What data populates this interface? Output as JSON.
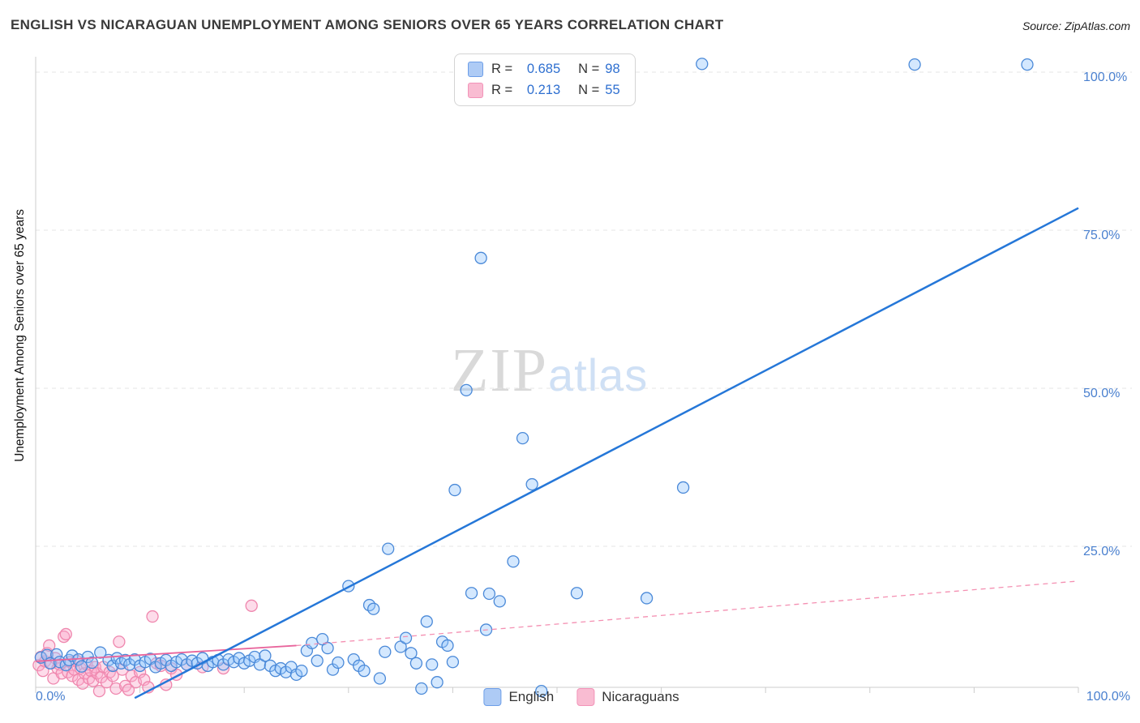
{
  "header": {
    "title": "ENGLISH VS NICARAGUAN UNEMPLOYMENT AMONG SENIORS OVER 65 YEARS CORRELATION CHART",
    "source": "Source: ZipAtlas.com"
  },
  "watermark": {
    "zip": "ZIP",
    "atlas": "atlas"
  },
  "legend_box": {
    "rows": [
      {
        "series": "English",
        "r_label": "R =",
        "r_value": "0.685",
        "n_label": "N =",
        "n_value": "98",
        "swatch_fill": "#aecbf5",
        "swatch_border": "#6d9ee8"
      },
      {
        "series": "Nicaraguans",
        "r_label": "R =",
        "r_value": "0.213",
        "n_label": "N =",
        "n_value": "55",
        "swatch_fill": "#f9bcd2",
        "swatch_border": "#f293b8"
      }
    ]
  },
  "bottom_legend": {
    "items": [
      {
        "label": "English",
        "swatch_fill": "#aecbf5",
        "swatch_border": "#6d9ee8"
      },
      {
        "label": "Nicaraguans",
        "swatch_fill": "#f9bcd2",
        "swatch_border": "#f293b8"
      }
    ]
  },
  "axes": {
    "y_label": "Unemployment Among Seniors over 65 years",
    "tick_color": "#4a80cf",
    "y_ticks": [
      {
        "label": "100.0%",
        "value": 100
      },
      {
        "label": "75.0%",
        "value": 75
      },
      {
        "label": "50.0%",
        "value": 50
      },
      {
        "label": "25.0%",
        "value": 25
      }
    ],
    "x_ticks": [
      {
        "label": "0.0%",
        "value": 0
      },
      {
        "label": "100.0%",
        "value": 100
      }
    ]
  },
  "chart_data": {
    "type": "scatter",
    "title": "ENGLISH VS NICARAGUAN UNEMPLOYMENT AMONG SENIORS OVER 65 YEARS CORRELATION CHART",
    "xlabel": "",
    "ylabel": "Unemployment Among Seniors over 65 years",
    "xlim": [
      0,
      100
    ],
    "ylim": [
      0,
      103
    ],
    "grid": "horizontal-dashed",
    "legend_position": "top-center",
    "series": [
      {
        "name": "English",
        "R": 0.685,
        "N": 98,
        "fill": "#93c5fd",
        "fill_opacity": 0.4,
        "stroke": "#4a89d8",
        "points": [
          [
            0.5,
            7.4
          ],
          [
            1.1,
            7.8
          ],
          [
            1.4,
            6.5
          ],
          [
            2.0,
            7.9
          ],
          [
            2.3,
            6.7
          ],
          [
            2.9,
            6.2
          ],
          [
            3.2,
            7.0
          ],
          [
            3.5,
            7.7
          ],
          [
            4.1,
            7.1
          ],
          [
            4.4,
            6.0
          ],
          [
            5.0,
            7.5
          ],
          [
            5.4,
            6.6
          ],
          [
            6.2,
            8.2
          ],
          [
            7.0,
            7.0
          ],
          [
            7.4,
            6.1
          ],
          [
            7.8,
            7.3
          ],
          [
            8.2,
            6.5
          ],
          [
            8.6,
            7.0
          ],
          [
            9.0,
            6.3
          ],
          [
            9.5,
            7.1
          ],
          [
            10.0,
            6.1
          ],
          [
            10.5,
            6.7
          ],
          [
            11.0,
            7.2
          ],
          [
            11.5,
            5.9
          ],
          [
            12.0,
            6.5
          ],
          [
            12.5,
            7.0
          ],
          [
            13.0,
            6.1
          ],
          [
            13.5,
            6.7
          ],
          [
            14.0,
            7.1
          ],
          [
            14.5,
            6.3
          ],
          [
            15.0,
            6.9
          ],
          [
            15.5,
            6.5
          ],
          [
            16.0,
            7.3
          ],
          [
            16.5,
            6.1
          ],
          [
            17.0,
            6.7
          ],
          [
            17.5,
            7.0
          ],
          [
            18.0,
            6.3
          ],
          [
            18.5,
            7.1
          ],
          [
            19.0,
            6.7
          ],
          [
            19.5,
            7.3
          ],
          [
            20.0,
            6.5
          ],
          [
            20.5,
            6.9
          ],
          [
            21.0,
            7.5
          ],
          [
            21.5,
            6.3
          ],
          [
            22.0,
            7.7
          ],
          [
            22.5,
            6.1
          ],
          [
            23.0,
            5.3
          ],
          [
            23.5,
            5.7
          ],
          [
            24.0,
            5.1
          ],
          [
            24.5,
            5.9
          ],
          [
            25.0,
            4.7
          ],
          [
            25.5,
            5.3
          ],
          [
            26.0,
            8.5
          ],
          [
            26.5,
            9.7
          ],
          [
            27.0,
            6.9
          ],
          [
            27.5,
            10.3
          ],
          [
            28.0,
            8.9
          ],
          [
            28.5,
            5.5
          ],
          [
            29.0,
            6.6
          ],
          [
            30.0,
            18.7
          ],
          [
            30.5,
            7.1
          ],
          [
            31.0,
            6.1
          ],
          [
            31.5,
            5.3
          ],
          [
            32.0,
            15.7
          ],
          [
            32.4,
            15.1
          ],
          [
            33.0,
            4.1
          ],
          [
            33.5,
            8.3
          ],
          [
            33.8,
            24.6
          ],
          [
            35.0,
            9.1
          ],
          [
            35.5,
            10.5
          ],
          [
            36.0,
            8.1
          ],
          [
            36.5,
            6.5
          ],
          [
            37.0,
            2.5
          ],
          [
            37.5,
            13.1
          ],
          [
            38.0,
            6.3
          ],
          [
            38.5,
            3.5
          ],
          [
            39.0,
            9.9
          ],
          [
            39.5,
            9.3
          ],
          [
            40.0,
            6.7
          ],
          [
            40.2,
            33.9
          ],
          [
            41.3,
            49.7
          ],
          [
            41.8,
            17.6
          ],
          [
            42.7,
            70.6
          ],
          [
            43.2,
            11.8
          ],
          [
            43.5,
            17.5
          ],
          [
            44.5,
            16.3
          ],
          [
            45.8,
            22.6
          ],
          [
            46.7,
            42.1
          ],
          [
            47.6,
            34.8
          ],
          [
            48.5,
            2.1
          ],
          [
            51.9,
            17.6
          ],
          [
            58.6,
            16.8
          ],
          [
            62.1,
            34.3
          ],
          [
            49.5,
            101.3
          ],
          [
            53.3,
            101.3
          ],
          [
            63.9,
            101.3
          ],
          [
            84.3,
            101.2
          ],
          [
            95.1,
            101.2
          ]
        ]
      },
      {
        "name": "Nicaraguans",
        "R": 0.213,
        "N": 55,
        "fill": "#f9a8ca",
        "fill_opacity": 0.4,
        "stroke": "#ef87ae",
        "points": [
          [
            0.3,
            6.2
          ],
          [
            0.5,
            7.5
          ],
          [
            0.7,
            5.3
          ],
          [
            0.9,
            6.8
          ],
          [
            1.1,
            8.1
          ],
          [
            1.3,
            9.3
          ],
          [
            1.5,
            6.5
          ],
          [
            1.7,
            4.1
          ],
          [
            1.9,
            7.3
          ],
          [
            2.1,
            5.7
          ],
          [
            2.3,
            6.3
          ],
          [
            2.5,
            4.9
          ],
          [
            2.7,
            10.7
          ],
          [
            2.9,
            11.1
          ],
          [
            3.1,
            5.1
          ],
          [
            3.3,
            6.7
          ],
          [
            3.5,
            4.5
          ],
          [
            3.7,
            5.5
          ],
          [
            3.9,
            6.9
          ],
          [
            4.1,
            3.9
          ],
          [
            4.3,
            5.7
          ],
          [
            4.5,
            3.3
          ],
          [
            4.7,
            4.9
          ],
          [
            4.9,
            6.3
          ],
          [
            5.1,
            4.1
          ],
          [
            5.3,
            5.3
          ],
          [
            5.5,
            3.7
          ],
          [
            5.7,
            5.9
          ],
          [
            5.9,
            4.9
          ],
          [
            6.1,
            2.1
          ],
          [
            6.3,
            4.3
          ],
          [
            6.5,
            5.9
          ],
          [
            6.8,
            3.5
          ],
          [
            7.1,
            5.1
          ],
          [
            7.4,
            4.5
          ],
          [
            7.7,
            2.5
          ],
          [
            8.0,
            9.9
          ],
          [
            8.3,
            5.5
          ],
          [
            8.6,
            2.9
          ],
          [
            8.9,
            2.3
          ],
          [
            9.2,
            4.5
          ],
          [
            9.6,
            3.5
          ],
          [
            10.0,
            5.1
          ],
          [
            10.4,
            3.9
          ],
          [
            10.8,
            2.7
          ],
          [
            11.2,
            13.9
          ],
          [
            11.6,
            6.5
          ],
          [
            12.0,
            6.1
          ],
          [
            12.5,
            3.1
          ],
          [
            13.0,
            5.7
          ],
          [
            13.5,
            4.7
          ],
          [
            14.5,
            6.3
          ],
          [
            16.0,
            5.9
          ],
          [
            18.0,
            5.7
          ],
          [
            20.7,
            15.6
          ]
        ]
      }
    ],
    "trend_lines": [
      {
        "name": "nicaraguan-trend-solid",
        "series": "Nicaraguans",
        "style": "solid",
        "color": "#e8659c",
        "width": 1.8,
        "x1": 0,
        "y1": 6.8,
        "x2": 25,
        "y2": 9.3
      },
      {
        "name": "nicaraguan-trend-dashed",
        "series": "Nicaraguans",
        "style": "dashed",
        "color": "#f490b2",
        "width": 1.3,
        "x1": 25,
        "y1": 9.3,
        "x2": 100,
        "y2": 19.5
      },
      {
        "name": "english-trend",
        "series": "English",
        "style": "solid",
        "color": "#2577d8",
        "width": 2.5,
        "x1": 9.5,
        "y1": 1.0,
        "x2": 100,
        "y2": 78.5
      }
    ]
  }
}
